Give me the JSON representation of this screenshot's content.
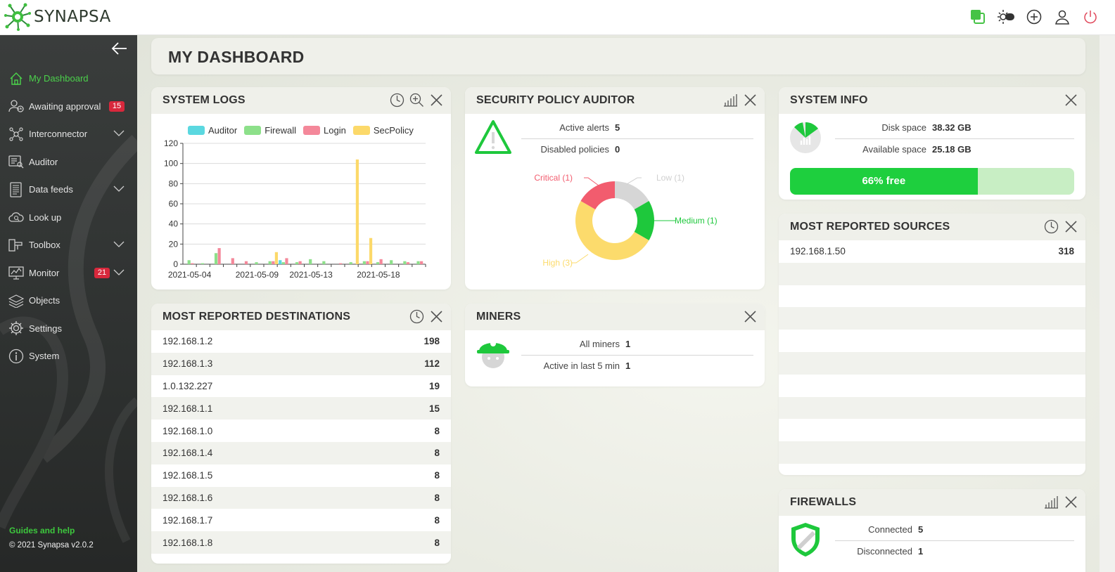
{
  "app": {
    "name": "SYNAPSA"
  },
  "page": {
    "title": "MY DASHBOARD"
  },
  "sidebar": {
    "items": [
      {
        "label": "My Dashboard",
        "icon": "home-icon",
        "active": true
      },
      {
        "label": "Awaiting approval",
        "icon": "user-clock-icon",
        "badge": "15"
      },
      {
        "label": "Interconnector",
        "icon": "network-icon",
        "expandable": true
      },
      {
        "label": "Auditor",
        "icon": "auditor-icon"
      },
      {
        "label": "Data feeds",
        "icon": "data-feeds-icon",
        "expandable": true
      },
      {
        "label": "Look up",
        "icon": "cloud-search-icon"
      },
      {
        "label": "Toolbox",
        "icon": "toolbox-icon",
        "expandable": true
      },
      {
        "label": "Monitor",
        "icon": "monitor-icon",
        "badge": "21",
        "expandable": true
      },
      {
        "label": "Objects",
        "icon": "layers-icon"
      },
      {
        "label": "Settings",
        "icon": "gear-icon"
      },
      {
        "label": "System",
        "icon": "info-icon"
      }
    ],
    "guides": "Guides and help",
    "copyright": "© 2021 Synapsa v2.0.2"
  },
  "colors": {
    "accent": "#2ecc40",
    "badge": "#d8283c",
    "auditor": "#5bd8e0",
    "firewall": "#8de08a",
    "login": "#f4889a",
    "secpolicy": "#fcd96a",
    "critical": "#f25c6e",
    "low": "#d6d6d6",
    "medium": "#1ec83c",
    "high": "#fcdb6c"
  },
  "system_logs": {
    "title": "SYSTEM LOGS",
    "chart_data": {
      "type": "bar",
      "title": "",
      "xlabel": "",
      "ylabel": "",
      "ylim": [
        0,
        120
      ],
      "yticks": [
        0,
        20,
        40,
        60,
        80,
        100,
        120
      ],
      "xtick_labels": [
        "2021-05-04",
        "2021-05-09",
        "2021-05-13",
        "2021-05-18"
      ],
      "legend_position": "top",
      "categories": [
        "2021-05-04",
        "2021-05-05",
        "2021-05-06",
        "2021-05-07",
        "2021-05-08",
        "2021-05-09",
        "2021-05-10",
        "2021-05-11",
        "2021-05-12",
        "2021-05-13",
        "2021-05-14",
        "2021-05-15",
        "2021-05-16",
        "2021-05-17",
        "2021-05-18",
        "2021-05-19",
        "2021-05-20",
        "2021-05-21"
      ],
      "series": [
        {
          "name": "Auditor",
          "values": [
            0,
            0,
            0,
            0,
            0,
            0,
            0,
            4,
            0,
            0,
            0,
            0,
            0,
            0,
            0,
            0,
            0,
            0
          ]
        },
        {
          "name": "Firewall",
          "values": [
            4,
            1,
            11,
            0,
            0,
            2,
            3,
            2,
            2,
            5,
            3,
            0,
            2,
            3,
            2,
            4,
            3,
            3
          ]
        },
        {
          "name": "Login",
          "values": [
            1,
            0,
            16,
            6,
            3,
            0,
            3,
            6,
            3,
            0,
            0,
            1,
            0,
            3,
            5,
            0,
            2,
            3
          ]
        },
        {
          "name": "SecPolicy",
          "values": [
            0,
            0,
            0,
            0,
            0,
            0,
            12,
            0,
            0,
            0,
            0,
            0,
            104,
            26,
            0,
            0,
            0,
            0
          ]
        }
      ]
    }
  },
  "security_policy_auditor": {
    "title": "SECURITY POLICY AUDITOR",
    "active_alerts_label": "Active alerts",
    "active_alerts": "5",
    "disabled_policies_label": "Disabled policies",
    "disabled_policies": "0",
    "chart_data": {
      "type": "pie",
      "slices": [
        {
          "label": "Low (1)",
          "value": 1
        },
        {
          "label": "Medium (1)",
          "value": 1
        },
        {
          "label": "High (3)",
          "value": 3
        },
        {
          "label": "Critical (1)",
          "value": 1
        }
      ]
    }
  },
  "system_info": {
    "title": "SYSTEM INFO",
    "disk_space_label": "Disk space",
    "disk_space": "38.32 GB",
    "available_space_label": "Available space",
    "available_space": "25.18 GB",
    "free_label": "66% free",
    "free_fraction": 0.66
  },
  "most_reported_sources": {
    "title": "MOST REPORTED SOURCES",
    "rows": [
      {
        "ip": "192.168.1.50",
        "count": "318"
      },
      {
        "ip": "",
        "count": ""
      },
      {
        "ip": "",
        "count": ""
      },
      {
        "ip": "",
        "count": ""
      },
      {
        "ip": "",
        "count": ""
      },
      {
        "ip": "",
        "count": ""
      },
      {
        "ip": "",
        "count": ""
      },
      {
        "ip": "",
        "count": ""
      },
      {
        "ip": "",
        "count": ""
      },
      {
        "ip": "",
        "count": ""
      }
    ]
  },
  "most_reported_destinations": {
    "title": "MOST REPORTED DESTINATIONS",
    "rows": [
      {
        "ip": "192.168.1.2",
        "count": "198"
      },
      {
        "ip": "192.168.1.3",
        "count": "112"
      },
      {
        "ip": "1.0.132.227",
        "count": "19"
      },
      {
        "ip": "192.168.1.1",
        "count": "15"
      },
      {
        "ip": "192.168.1.0",
        "count": "8"
      },
      {
        "ip": "192.168.1.4",
        "count": "8"
      },
      {
        "ip": "192.168.1.5",
        "count": "8"
      },
      {
        "ip": "192.168.1.6",
        "count": "8"
      },
      {
        "ip": "192.168.1.7",
        "count": "8"
      },
      {
        "ip": "192.168.1.8",
        "count": "8"
      }
    ]
  },
  "miners": {
    "title": "MINERS",
    "all_miners_label": "All miners",
    "all_miners": "1",
    "active_label": "Active in last 5 min",
    "active": "1"
  },
  "firewalls": {
    "title": "FIREWALLS",
    "connected_label": "Connected",
    "connected": "5",
    "disconnected_label": "Disconnected",
    "disconnected": "1"
  }
}
